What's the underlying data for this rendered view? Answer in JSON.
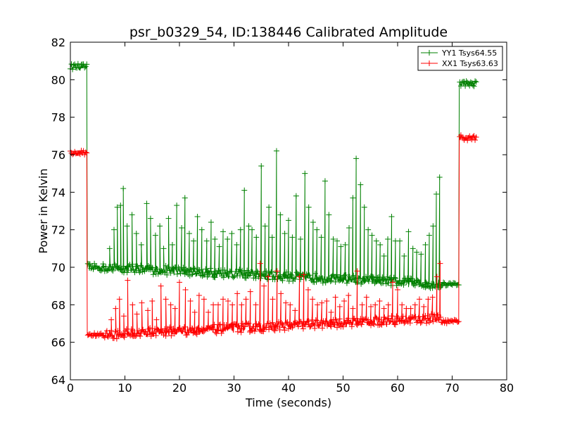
{
  "chart_data": {
    "type": "line",
    "title": "psr_b0329_54, ID:138446 Calibrated Amplitude",
    "xlabel": "Time (seconds)",
    "ylabel": "Power in Kelvin",
    "xlim": [
      0,
      80
    ],
    "ylim": [
      64,
      82
    ],
    "xticks": [
      0,
      10,
      20,
      30,
      40,
      50,
      60,
      70,
      80
    ],
    "yticks": [
      64,
      66,
      68,
      70,
      72,
      74,
      76,
      78,
      80,
      82
    ],
    "grid": false,
    "legend_position": "top-right",
    "marker": "+",
    "series": [
      {
        "name": "YY1 Tsys64.55",
        "color": "#008000",
        "segments": [
          {
            "x_start": 0,
            "x_end": 3.0,
            "base": 80.7,
            "noise": 0.15
          },
          {
            "x_start": 3.1,
            "x_end": 6.0,
            "base": 70.0,
            "noise": 0.2
          },
          {
            "x_start": 6.0,
            "x_end": 68.0,
            "base_start": 70.0,
            "base_end": 69.1,
            "noise": 0.25
          },
          {
            "x_start": 68.0,
            "x_end": 71.2,
            "base": 69.1,
            "noise": 0.1
          },
          {
            "x_start": 71.3,
            "x_end": 74.5,
            "base": 79.8,
            "noise": 0.15
          }
        ],
        "spikes": [
          [
            7.2,
            71.0
          ],
          [
            8.0,
            72.0
          ],
          [
            8.6,
            73.2
          ],
          [
            9.2,
            73.3
          ],
          [
            9.7,
            74.2
          ],
          [
            10.4,
            72.2
          ],
          [
            11.3,
            72.8
          ],
          [
            12.1,
            71.8
          ],
          [
            13.0,
            71.2
          ],
          [
            14.0,
            73.4
          ],
          [
            14.7,
            72.6
          ],
          [
            15.6,
            71.7
          ],
          [
            16.4,
            72.2
          ],
          [
            17.1,
            71.0
          ],
          [
            18.0,
            72.6
          ],
          [
            18.7,
            71.2
          ],
          [
            19.5,
            73.3
          ],
          [
            20.4,
            72.1
          ],
          [
            21.0,
            73.7
          ],
          [
            21.8,
            71.8
          ],
          [
            22.6,
            71.4
          ],
          [
            23.3,
            72.7
          ],
          [
            24.1,
            72.0
          ],
          [
            25.0,
            71.4
          ],
          [
            25.8,
            72.4
          ],
          [
            26.5,
            71.5
          ],
          [
            27.3,
            71.1
          ],
          [
            28.0,
            71.9
          ],
          [
            28.8,
            71.5
          ],
          [
            29.6,
            71.8
          ],
          [
            30.5,
            71.2
          ],
          [
            31.2,
            72.0
          ],
          [
            31.9,
            74.1
          ],
          [
            32.7,
            72.2
          ],
          [
            33.3,
            72.0
          ],
          [
            34.1,
            71.6
          ],
          [
            35.0,
            75.4
          ],
          [
            35.7,
            72.2
          ],
          [
            36.4,
            73.2
          ],
          [
            37.0,
            71.6
          ],
          [
            37.8,
            76.2
          ],
          [
            38.5,
            72.8
          ],
          [
            39.3,
            71.8
          ],
          [
            40.0,
            72.5
          ],
          [
            40.7,
            71.6
          ],
          [
            41.4,
            73.8
          ],
          [
            42.2,
            71.5
          ],
          [
            43.0,
            75.0
          ],
          [
            43.7,
            73.2
          ],
          [
            44.5,
            72.4
          ],
          [
            45.2,
            72.0
          ],
          [
            46.0,
            71.6
          ],
          [
            46.7,
            74.6
          ],
          [
            47.4,
            72.8
          ],
          [
            48.2,
            71.5
          ],
          [
            48.9,
            71.4
          ],
          [
            49.6,
            71.1
          ],
          [
            50.4,
            71.2
          ],
          [
            51.1,
            72.1
          ],
          [
            51.8,
            73.7
          ],
          [
            52.4,
            75.8
          ],
          [
            53.2,
            74.4
          ],
          [
            53.9,
            73.2
          ],
          [
            54.6,
            72.0
          ],
          [
            55.3,
            71.7
          ],
          [
            56.1,
            71.4
          ],
          [
            56.8,
            71.2
          ],
          [
            57.5,
            70.6
          ],
          [
            58.2,
            71.5
          ],
          [
            58.9,
            72.7
          ],
          [
            59.6,
            71.4
          ],
          [
            60.4,
            71.4
          ],
          [
            61.2,
            70.6
          ],
          [
            62.0,
            71.9
          ],
          [
            62.8,
            71.0
          ],
          [
            63.5,
            70.8
          ],
          [
            64.3,
            70.7
          ],
          [
            65.1,
            71.2
          ],
          [
            65.8,
            71.7
          ],
          [
            66.5,
            72.2
          ],
          [
            67.1,
            73.9
          ],
          [
            67.7,
            74.8
          ]
        ]
      },
      {
        "name": "XX1 Tsys63.63",
        "color": "#ff0000",
        "segments": [
          {
            "x_start": 0,
            "x_end": 3.0,
            "base": 76.1,
            "noise": 0.15
          },
          {
            "x_start": 3.1,
            "x_end": 6.0,
            "base": 66.4,
            "noise": 0.1
          },
          {
            "x_start": 6.0,
            "x_end": 68.0,
            "base_start": 66.4,
            "base_end": 67.3,
            "noise": 0.25
          },
          {
            "x_start": 68.0,
            "x_end": 71.2,
            "base": 67.1,
            "noise": 0.1
          },
          {
            "x_start": 71.3,
            "x_end": 74.5,
            "base": 76.9,
            "noise": 0.15
          }
        ],
        "spikes": [
          [
            7.5,
            67.2
          ],
          [
            8.3,
            67.8
          ],
          [
            9.0,
            68.3
          ],
          [
            9.8,
            67.4
          ],
          [
            10.5,
            69.3
          ],
          [
            11.4,
            68.0
          ],
          [
            12.2,
            67.5
          ],
          [
            13.1,
            68.1
          ],
          [
            14.2,
            67.7
          ],
          [
            15.0,
            68.2
          ],
          [
            15.8,
            67.2
          ],
          [
            16.6,
            69.0
          ],
          [
            17.5,
            68.3
          ],
          [
            18.4,
            68.0
          ],
          [
            19.2,
            67.8
          ],
          [
            20.0,
            69.2
          ],
          [
            21.1,
            68.8
          ],
          [
            22.0,
            68.2
          ],
          [
            22.8,
            67.6
          ],
          [
            23.6,
            68.5
          ],
          [
            24.5,
            68.3
          ],
          [
            25.3,
            67.6
          ],
          [
            26.2,
            68.0
          ],
          [
            27.1,
            68.0
          ],
          [
            28.0,
            68.3
          ],
          [
            28.9,
            68.2
          ],
          [
            29.7,
            68.0
          ],
          [
            30.6,
            68.6
          ],
          [
            31.4,
            68.0
          ],
          [
            32.2,
            68.3
          ],
          [
            33.0,
            68.7
          ],
          [
            34.0,
            68.0
          ],
          [
            34.8,
            70.2
          ],
          [
            35.5,
            69.0
          ],
          [
            36.3,
            69.5
          ],
          [
            37.1,
            68.3
          ],
          [
            37.9,
            69.8
          ],
          [
            38.6,
            68.6
          ],
          [
            39.5,
            68.1
          ],
          [
            40.3,
            68.0
          ],
          [
            41.2,
            67.7
          ],
          [
            42.0,
            69.5
          ],
          [
            42.8,
            69.6
          ],
          [
            43.6,
            68.8
          ],
          [
            44.4,
            68.3
          ],
          [
            45.3,
            68.0
          ],
          [
            46.1,
            68.1
          ],
          [
            47.0,
            68.2
          ],
          [
            47.8,
            67.6
          ],
          [
            48.6,
            68.4
          ],
          [
            49.4,
            67.9
          ],
          [
            50.2,
            68.2
          ],
          [
            51.0,
            68.5
          ],
          [
            51.8,
            67.8
          ],
          [
            52.6,
            69.8
          ],
          [
            53.5,
            68.0
          ],
          [
            54.3,
            68.4
          ],
          [
            55.1,
            67.9
          ],
          [
            55.9,
            68.0
          ],
          [
            56.7,
            68.2
          ],
          [
            57.5,
            67.8
          ],
          [
            58.3,
            68.0
          ],
          [
            59.1,
            69.2
          ],
          [
            60.0,
            68.8
          ],
          [
            60.8,
            68.0
          ],
          [
            61.6,
            67.8
          ],
          [
            62.4,
            67.8
          ],
          [
            63.2,
            68.0
          ],
          [
            64.0,
            68.3
          ],
          [
            64.8,
            67.9
          ],
          [
            65.6,
            68.3
          ],
          [
            66.4,
            68.4
          ],
          [
            67.2,
            69.5
          ],
          [
            67.8,
            70.2
          ]
        ]
      }
    ]
  }
}
